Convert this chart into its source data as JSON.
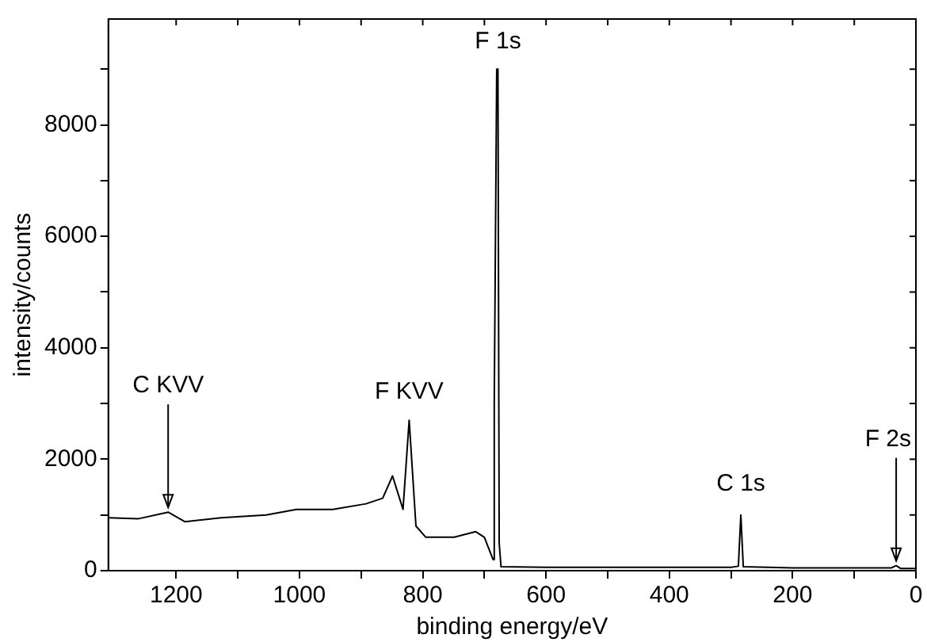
{
  "chart_data": {
    "type": "line",
    "xlabel": "binding energy/eV",
    "ylabel": "intensity/counts",
    "xlim": [
      1310,
      0
    ],
    "ylim": [
      0,
      9900
    ],
    "xticks": [
      1200,
      {
        "value": 1100,
        "label": null
      },
      1000,
      {
        "value": 900,
        "label": null
      },
      800,
      {
        "value": 700,
        "label": null
      },
      600,
      {
        "value": 500,
        "label": null
      },
      400,
      {
        "value": 300,
        "label": null
      },
      200,
      {
        "value": 100,
        "label": null
      },
      0
    ],
    "yticks": [
      0,
      {
        "value": 1000,
        "label": null
      },
      2000,
      {
        "value": 3000,
        "label": null
      },
      4000,
      {
        "value": 5000,
        "label": null
      },
      6000,
      {
        "value": 7000,
        "label": null
      },
      8000,
      {
        "value": 9000,
        "label": null
      }
    ],
    "grid": false,
    "legend": false,
    "marker": "none",
    "line_style": "solid",
    "series": [
      {
        "color": "#000000",
        "x": [
          1310,
          1262,
          1213,
          1186,
          1127,
          1054,
          1005,
          946,
          892,
          865,
          849,
          832,
          822,
          811,
          795,
          749,
          714,
          700,
          686,
          684,
          680,
          678,
          676,
          673,
          600,
          500,
          400,
          300,
          288,
          284,
          280,
          200,
          100,
          40,
          32,
          25,
          0
        ],
        "values": [
          950,
          930,
          1050,
          880,
          950,
          1000,
          1100,
          1100,
          1200,
          1300,
          1700,
          1100,
          2700,
          800,
          600,
          600,
          700,
          600,
          200,
          3000,
          9000,
          9000,
          500,
          70,
          60,
          60,
          60,
          60,
          80,
          1000,
          70,
          50,
          50,
          50,
          90,
          40,
          40
        ]
      }
    ],
    "annotations": [
      {
        "text": "C KVV",
        "x": 1213,
        "y": 1050
      },
      {
        "text": "F KVV",
        "x": 822,
        "y": 2700
      },
      {
        "text": "F 1s",
        "x": 678,
        "y": 9000
      },
      {
        "text": "C 1s",
        "x": 284,
        "y": 1000
      },
      {
        "text": "F 2s",
        "x": 32,
        "y": 90
      }
    ]
  }
}
